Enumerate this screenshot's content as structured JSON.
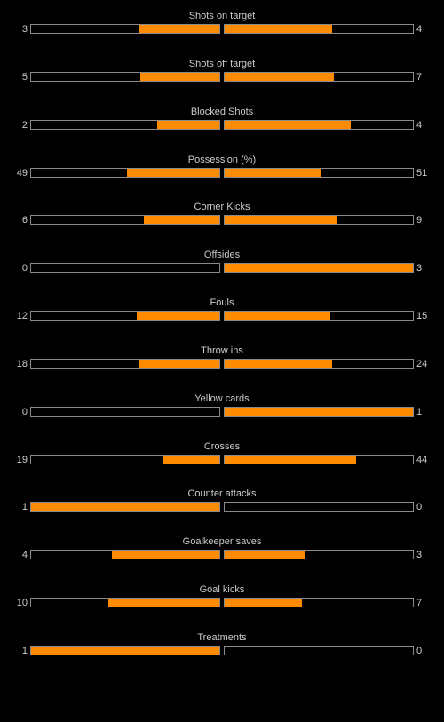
{
  "colors": {
    "background": "#000000",
    "text": "#cccccc",
    "bar_fill": "#ff8c00",
    "bar_border": "#8a8a8a"
  },
  "stats": [
    {
      "label": "Shots on target",
      "home": "3",
      "away": "4",
      "home_fill": 0.43,
      "away_fill": 0.57
    },
    {
      "label": "Shots off target",
      "home": "5",
      "away": "7",
      "home_fill": 0.42,
      "away_fill": 0.58
    },
    {
      "label": "Blocked Shots",
      "home": "2",
      "away": "4",
      "home_fill": 0.33,
      "away_fill": 0.67
    },
    {
      "label": "Possession (%)",
      "home": "49",
      "away": "51",
      "home_fill": 0.49,
      "away_fill": 0.51
    },
    {
      "label": "Corner Kicks",
      "home": "6",
      "away": "9",
      "home_fill": 0.4,
      "away_fill": 0.6
    },
    {
      "label": "Offsides",
      "home": "0",
      "away": "3",
      "home_fill": 0.0,
      "away_fill": 1.0
    },
    {
      "label": "Fouls",
      "home": "12",
      "away": "15",
      "home_fill": 0.44,
      "away_fill": 0.56
    },
    {
      "label": "Throw ins",
      "home": "18",
      "away": "24",
      "home_fill": 0.43,
      "away_fill": 0.57
    },
    {
      "label": "Yellow cards",
      "home": "0",
      "away": "1",
      "home_fill": 0.0,
      "away_fill": 1.0
    },
    {
      "label": "Crosses",
      "home": "19",
      "away": "44",
      "home_fill": 0.3,
      "away_fill": 0.7
    },
    {
      "label": "Counter attacks",
      "home": "1",
      "away": "0",
      "home_fill": 1.0,
      "away_fill": 0.0
    },
    {
      "label": "Goalkeeper saves",
      "home": "4",
      "away": "3",
      "home_fill": 0.57,
      "away_fill": 0.43
    },
    {
      "label": "Goal kicks",
      "home": "10",
      "away": "7",
      "home_fill": 0.59,
      "away_fill": 0.41
    },
    {
      "label": "Treatments",
      "home": "1",
      "away": "0",
      "home_fill": 1.0,
      "away_fill": 0.0
    }
  ]
}
